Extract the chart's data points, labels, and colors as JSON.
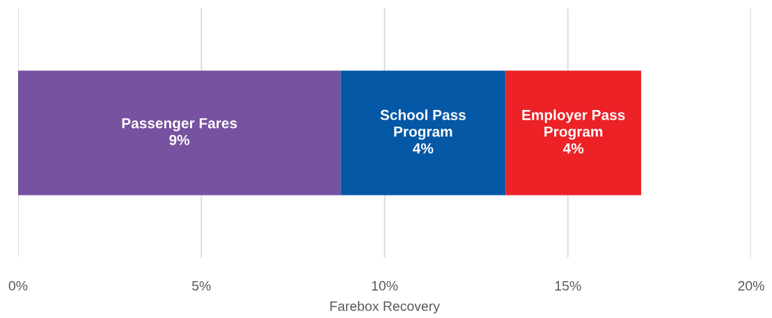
{
  "chart_data": {
    "type": "bar",
    "orientation": "horizontal",
    "stacked": true,
    "categories": [
      null
    ],
    "series": [
      {
        "name": "Passenger Fares",
        "color": "#7652a0",
        "values": [
          8.8
        ],
        "value_labels": [
          "9%"
        ]
      },
      {
        "name": "School Pass Program",
        "color": "#0558a6",
        "values": [
          4.5
        ],
        "value_labels": [
          "4%"
        ]
      },
      {
        "name": "Employer Pass Program",
        "color": "#ec2227",
        "values": [
          3.7
        ],
        "value_labels": [
          "4%"
        ]
      }
    ],
    "xlabel": "Farebox Recovery",
    "xlim": [
      0,
      20
    ],
    "xticks": [
      {
        "value": 0,
        "label": "0%"
      },
      {
        "value": 5,
        "label": "5%"
      },
      {
        "value": 10,
        "label": "10%"
      },
      {
        "value": 15,
        "label": "15%"
      },
      {
        "value": 20,
        "label": "20%"
      }
    ],
    "grid": "x",
    "tick_labels": "x",
    "legend": false
  }
}
